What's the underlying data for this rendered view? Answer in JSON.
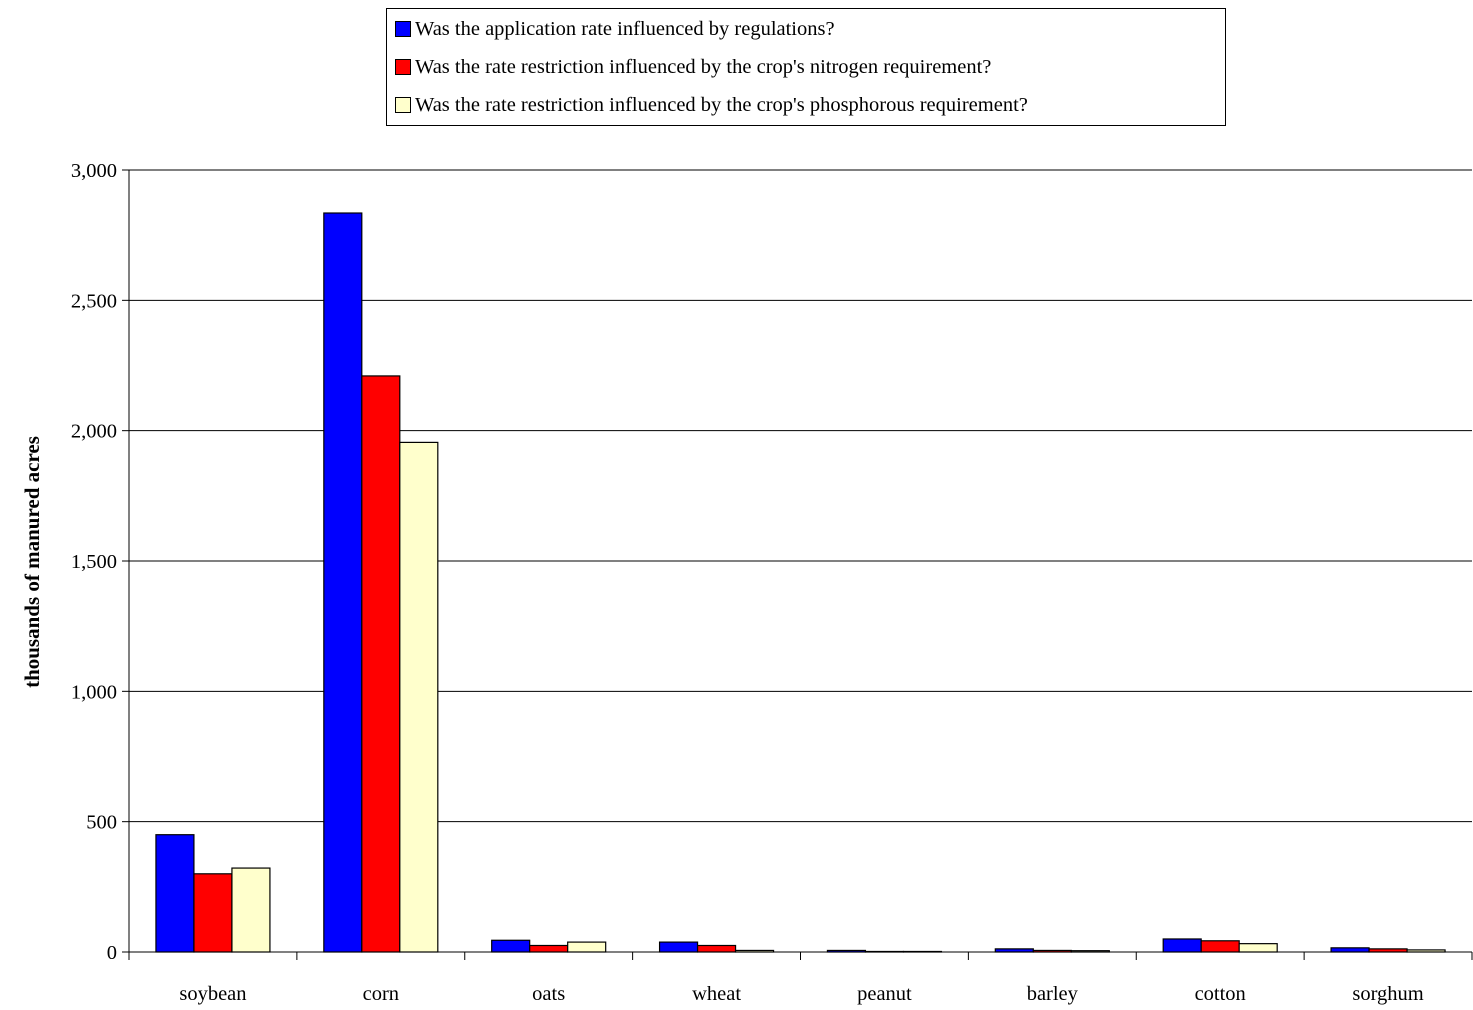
{
  "chart_data": {
    "type": "bar",
    "title": "",
    "xlabel": "",
    "ylabel": "thousands of manured acres",
    "ylim": [
      0,
      3000
    ],
    "yticks": [
      0,
      500,
      1000,
      1500,
      2000,
      2500,
      3000
    ],
    "ytick_labels": [
      "0",
      "500",
      "1,000",
      "1,500",
      "2,000",
      "2,500",
      "3,000"
    ],
    "grid": true,
    "legend_position": "top",
    "categories": [
      "soybean",
      "corn",
      "oats",
      "wheat",
      "peanut",
      "barley",
      "cotton",
      "sorghum"
    ],
    "series": [
      {
        "name": "Was the application rate influenced by regulations?",
        "color": "#0000ff",
        "values": [
          450,
          2835,
          45,
          38,
          6,
          12,
          50,
          16
        ]
      },
      {
        "name": "Was the rate restriction influenced by the crop's nitrogen requirement?",
        "color": "#ff0000",
        "values": [
          300,
          2210,
          25,
          25,
          2,
          6,
          43,
          12
        ]
      },
      {
        "name": "Was the rate restriction influenced by the crop's phosphorous requirement?",
        "color": "#ffffcc",
        "values": [
          322,
          1955,
          38,
          6,
          2,
          5,
          32,
          8
        ]
      }
    ]
  }
}
